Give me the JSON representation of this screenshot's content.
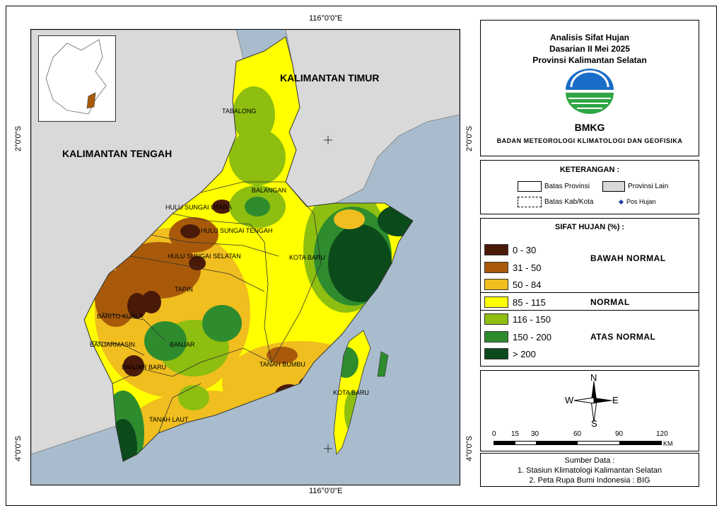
{
  "coords": {
    "lon_top": "116°0'0\"E",
    "lon_bottom": "116°0'0\"E",
    "lat_2_left": "2°0'0\"S",
    "lat_2_right": "2°0'0\"S",
    "lat_4_left": "4°0'0\"S",
    "lat_4_right": "4°0'0\"S"
  },
  "map": {
    "labels": {
      "kalimantan_timur": "KALIMANTAN TIMUR",
      "kalimantan_tengah": "KALIMANTAN TENGAH"
    },
    "districts": [
      {
        "id": "tabalong",
        "name": "TABALONG"
      },
      {
        "id": "balangan",
        "name": "BALANGAN"
      },
      {
        "id": "hsu",
        "name": "HULU SUNGAI UTARA"
      },
      {
        "id": "hst",
        "name": "HULU SUNGAI TENGAH"
      },
      {
        "id": "hss",
        "name": "HULU SUNGAI SELATAN"
      },
      {
        "id": "kotabaru",
        "name": "KOTA BARU"
      },
      {
        "id": "tapin",
        "name": "TAPIN"
      },
      {
        "id": "baritokuala",
        "name": "BARITO KUALA"
      },
      {
        "id": "banjarmasin",
        "name": "BANJARMASIN"
      },
      {
        "id": "banjar",
        "name": "BANJAR"
      },
      {
        "id": "banjarbaru",
        "name": "BANJAR BARU"
      },
      {
        "id": "tanahbumbu",
        "name": "TANAH BUMBU"
      },
      {
        "id": "kotabaru2",
        "name": "KOTA BARU"
      },
      {
        "id": "tanahlaut",
        "name": "TANAH LAUT"
      }
    ]
  },
  "title": {
    "line1": "Analisis Sifat Hujan",
    "line2": "Dasarian II Mei 2025",
    "line3": "Provinsi Kalimantan Selatan",
    "logo_text": "BMKG",
    "agency": "BADAN METEOROLOGI KLIMATOLOGI DAN GEOFISIKA"
  },
  "keterangan": {
    "title": "KETERANGAN :",
    "batas_provinsi": "Batas Provinsi",
    "provinsi_lain": "Provinsi Lain",
    "batas_kab": "Batas Kab/Kota",
    "pos_hujan": "Pos Hujan"
  },
  "sifat": {
    "title": "SIFAT HUJAN (%) :",
    "classes": [
      {
        "label": "0 - 30",
        "color": "#4a1a08"
      },
      {
        "label": "31 - 50",
        "color": "#a85a0a"
      },
      {
        "label": "50 - 84",
        "color": "#f0be1e"
      },
      {
        "label": "85 - 115",
        "color": "#ffff00"
      },
      {
        "label": "116 - 150",
        "color": "#8dbe10"
      },
      {
        "label": "150 - 200",
        "color": "#2e8c2e"
      },
      {
        "label": "> 200",
        "color": "#0b4a1a"
      }
    ],
    "categories": {
      "bawah": "BAWAH NORMAL",
      "normal": "NORMAL",
      "atas": "ATAS NORMAL"
    }
  },
  "compass": {
    "n": "N",
    "s": "S",
    "e": "E",
    "w": "W"
  },
  "scale": {
    "ticks": [
      "0",
      "15",
      "30",
      "60",
      "90",
      "120"
    ],
    "unit": "KM"
  },
  "source": {
    "title": "Sumber Data :",
    "line1": "1. Stasiun Klimatologi Kalimantan Selatan",
    "line2": "2. Peta Rupa Bumi Indonesia : BIG"
  }
}
